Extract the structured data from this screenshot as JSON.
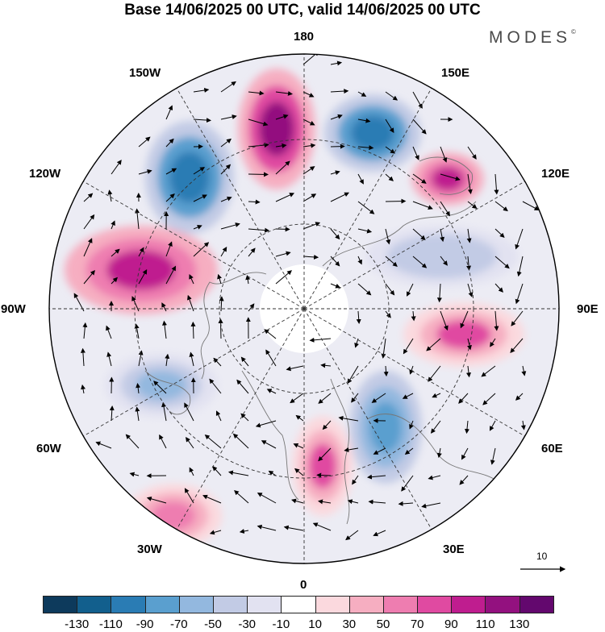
{
  "title": "Base 14/06/2025 00 UTC, valid 14/06/2025 00 UTC",
  "brand": {
    "text": "MODES",
    "mark": "©"
  },
  "longitude_labels": {
    "lon_180": "180",
    "lon_150E": "150E",
    "lon_120E": "120E",
    "lon_90E": "90E",
    "lon_60E": "60E",
    "lon_30E": "30E",
    "lon_0": "0",
    "lon_30W": "30W",
    "lon_60W": "60W",
    "lon_90W": "90W",
    "lon_120W": "120W",
    "lon_150W": "150W"
  },
  "reference_vector": {
    "value": "10"
  },
  "colorbar": {
    "colors": [
      "#0d3a5c",
      "#125f8d",
      "#2a7cb4",
      "#5a9fcf",
      "#93b8df",
      "#c2cbe5",
      "#e2e2f1",
      "#ffffff",
      "#fbd9de",
      "#f6aec1",
      "#ee7db0",
      "#e04aa1",
      "#bf1d8f",
      "#93117f",
      "#63086e"
    ],
    "tick_labels": [
      "-130",
      "-110",
      "-90",
      "-70",
      "-50",
      "-30",
      "-10",
      "10",
      "30",
      "50",
      "70",
      "90",
      "110",
      "130"
    ]
  },
  "anomaly_centers": [
    {
      "name": "high-180",
      "sign": "positive",
      "level": "110"
    },
    {
      "name": "low-150E",
      "sign": "negative",
      "level": "-110"
    },
    {
      "name": "high-125E",
      "sign": "positive",
      "level": "90"
    },
    {
      "name": "low-105E",
      "sign": "negative",
      "level": "-50"
    },
    {
      "name": "high-85E",
      "sign": "positive",
      "level": "70"
    },
    {
      "name": "low-45E",
      "sign": "negative",
      "level": "-90"
    },
    {
      "name": "high-10E",
      "sign": "positive",
      "level": "70"
    },
    {
      "name": "low-145W",
      "sign": "negative",
      "level": "-110"
    },
    {
      "name": "high-100W",
      "sign": "positive",
      "level": "90"
    },
    {
      "name": "low-70W",
      "sign": "negative",
      "level": "-70"
    },
    {
      "name": "high-35W",
      "sign": "positive",
      "level": "50"
    }
  ]
}
